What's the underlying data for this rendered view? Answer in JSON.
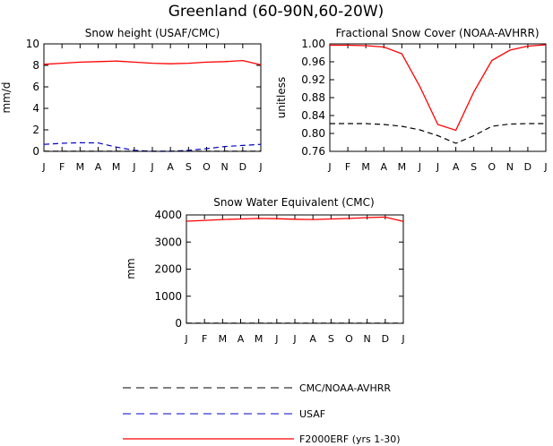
{
  "figure_title": "Greenland (60-90N,60-20W)",
  "colors": {
    "model": "#ff0000",
    "cmc_noaa": "#000000",
    "usaf": "#0000cc",
    "frame": "#000000"
  },
  "legend": [
    {
      "label": "CMC/NOAA-AVHRR",
      "color": "#000000",
      "dash": "dashed"
    },
    {
      "label": "USAF",
      "color": "#0000cc",
      "dash": "dashed"
    },
    {
      "label": "F2000ERF (yrs 1-30)",
      "color": "#ff0000",
      "dash": "solid"
    }
  ],
  "chart_data": [
    {
      "type": "line",
      "title": "Snow height (USAF/CMC)",
      "xlabel": "",
      "ylabel": "mm/d",
      "categories": [
        "J",
        "F",
        "M",
        "A",
        "M",
        "J",
        "J",
        "A",
        "S",
        "O",
        "N",
        "D",
        "J"
      ],
      "ylim": [
        0,
        10
      ],
      "yticks": [
        "0",
        "2",
        "4",
        "6",
        "8",
        "10"
      ],
      "series": [
        {
          "name": "F2000ERF (yrs 1-30)",
          "color": "#ff0000",
          "dash": "solid",
          "values": [
            8.1,
            8.2,
            8.3,
            8.35,
            8.4,
            8.3,
            8.2,
            8.15,
            8.2,
            8.3,
            8.35,
            8.45,
            8.05
          ]
        },
        {
          "name": "USAF",
          "color": "#0000cc",
          "dash": "dashed",
          "values": [
            0.65,
            0.75,
            0.8,
            0.78,
            0.4,
            0.1,
            0.0,
            0.0,
            0.1,
            0.25,
            0.45,
            0.55,
            0.65
          ]
        },
        {
          "name": "CMC/NOAA-AVHRR",
          "color": "#000000",
          "dash": "dashed",
          "values": [
            0.02,
            0.02,
            0.02,
            0.02,
            0.02,
            0.02,
            0.02,
            0.02,
            0.02,
            0.02,
            0.02,
            0.02,
            0.02
          ]
        }
      ]
    },
    {
      "type": "line",
      "title": "Fractional Snow Cover (NOAA-AVHRR)",
      "xlabel": "",
      "ylabel": "unitless",
      "categories": [
        "J",
        "F",
        "M",
        "A",
        "M",
        "J",
        "J",
        "A",
        "S",
        "O",
        "N",
        "D",
        "J"
      ],
      "ylim": [
        0.76,
        1.0
      ],
      "yticks": [
        "0.76",
        "0.80",
        "0.84",
        "0.88",
        "0.92",
        "0.96",
        "1.00"
      ],
      "series": [
        {
          "name": "F2000ERF (yrs 1-30)",
          "color": "#ff0000",
          "dash": "solid",
          "values": [
            0.997,
            0.997,
            0.996,
            0.993,
            0.978,
            0.905,
            0.82,
            0.807,
            0.893,
            0.963,
            0.986,
            0.995,
            0.998
          ]
        },
        {
          "name": "CMC/NOAA-AVHRR",
          "color": "#000000",
          "dash": "dashed",
          "values": [
            0.822,
            0.822,
            0.822,
            0.82,
            0.816,
            0.808,
            0.795,
            0.778,
            0.795,
            0.816,
            0.821,
            0.822,
            0.822
          ]
        }
      ]
    },
    {
      "type": "line",
      "title": "Snow Water Equivalent (CMC)",
      "xlabel": "",
      "ylabel": "mm",
      "categories": [
        "J",
        "F",
        "M",
        "A",
        "M",
        "J",
        "J",
        "A",
        "S",
        "O",
        "N",
        "D",
        "J"
      ],
      "ylim": [
        0,
        4000
      ],
      "yticks": [
        "0",
        "1000",
        "2000",
        "3000",
        "4000"
      ],
      "series": [
        {
          "name": "F2000ERF (yrs 1-30)",
          "color": "#ff0000",
          "dash": "solid",
          "values": [
            3770,
            3800,
            3830,
            3850,
            3870,
            3860,
            3840,
            3830,
            3850,
            3870,
            3900,
            3920,
            3760
          ]
        },
        {
          "name": "CMC/NOAA-AVHRR",
          "color": "#000000",
          "dash": "dashed",
          "values": [
            5,
            5,
            5,
            5,
            5,
            5,
            5,
            5,
            5,
            5,
            5,
            5,
            5
          ]
        }
      ]
    }
  ]
}
